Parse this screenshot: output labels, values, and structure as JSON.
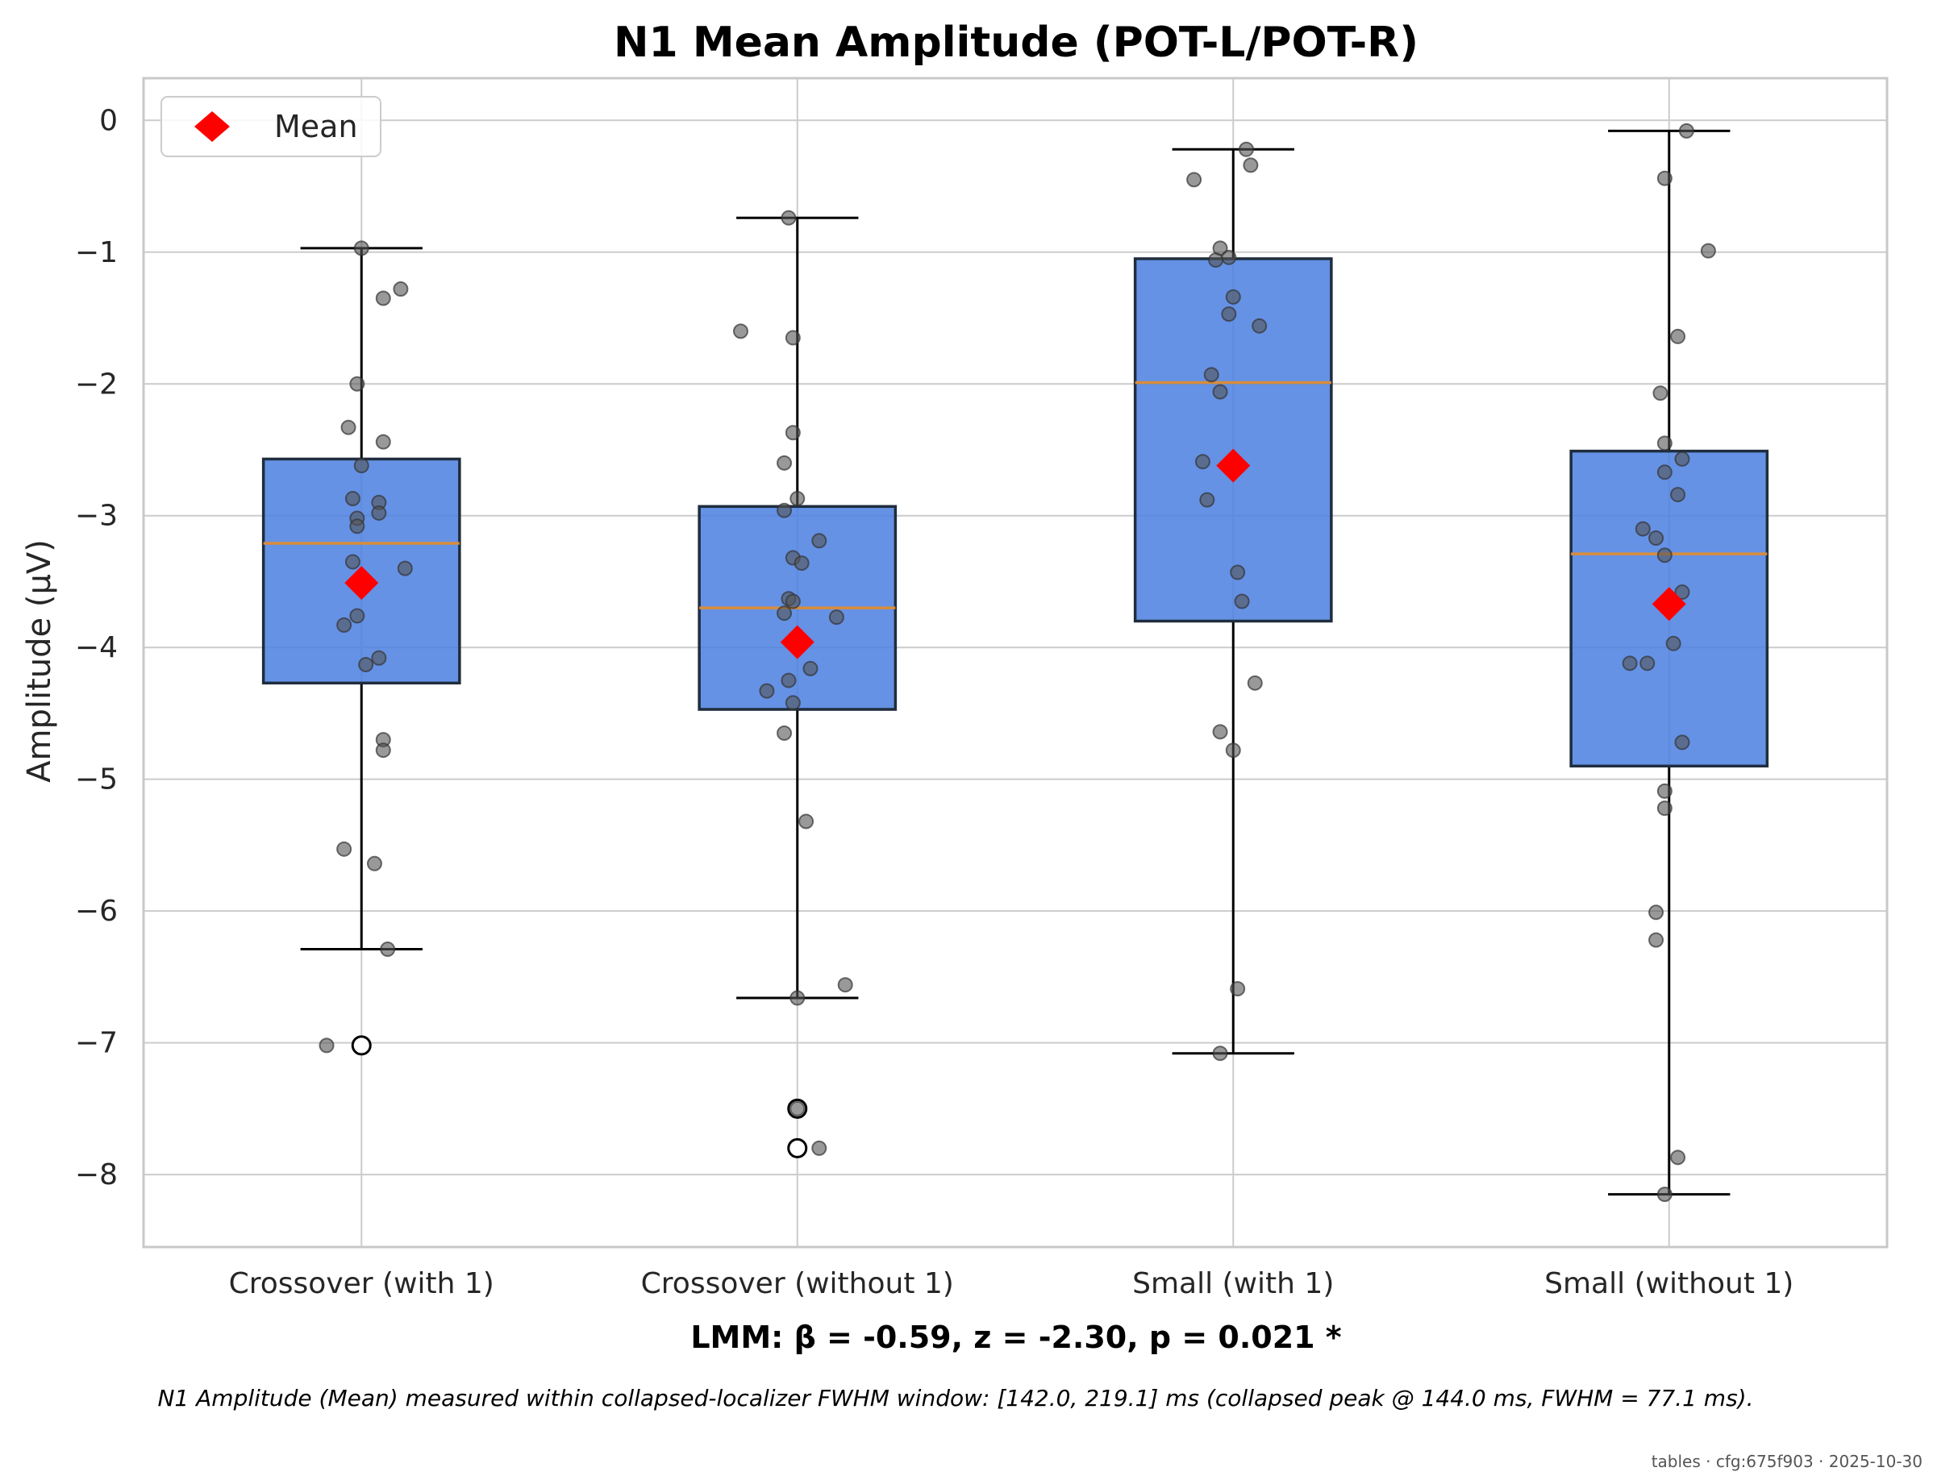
{
  "colors": {
    "box_fill": "#4a7fe0",
    "box_edge": "#1f2d3d",
    "median": "#d98c3a",
    "mean_marker": "#ff0000",
    "points": "#555555",
    "grid": "#cccccc",
    "frame": "#c8c8c8"
  },
  "legend": {
    "mean_label": "Mean",
    "position": "top-left"
  },
  "stat_text": "LMM: β = -0.59, z = -2.30, p = 0.021 *",
  "caption": "N1 Amplitude (Mean) measured within collapsed-localizer FWHM window: [142.0, 219.1] ms (collapsed peak @ 144.0 ms, FWHM = 77.1 ms).",
  "stamp": "tables · cfg:675f903 · 2025-10-30",
  "chart_data": {
    "type": "box",
    "title": "N1 Mean Amplitude (POT-L/POT-R)",
    "xlabel": "",
    "ylabel": "Amplitude (μV)",
    "ylim": [
      -8.55,
      0.32
    ],
    "yticks": [
      0,
      -1,
      -2,
      -3,
      -4,
      -5,
      -6,
      -7,
      -8
    ],
    "ytick_labels": [
      "0",
      "−1",
      "−2",
      "−3",
      "−4",
      "−5",
      "−6",
      "−7",
      "−8"
    ],
    "grid": true,
    "categories": [
      "Crossover (with 1)",
      "Crossover (without 1)",
      "Small (with 1)",
      "Small (without 1)"
    ],
    "groups": [
      {
        "q1": -4.27,
        "median": -3.21,
        "q3": -2.57,
        "whisker_low": -6.29,
        "whisker_high": -0.97,
        "mean": -3.51,
        "outliers": [
          -7.02
        ],
        "points": [
          {
            "jitter": 0.0,
            "y": -0.97
          },
          {
            "jitter": 0.09,
            "y": -1.28
          },
          {
            "jitter": 0.05,
            "y": -1.35
          },
          {
            "jitter": -0.01,
            "y": -2.0
          },
          {
            "jitter": -0.03,
            "y": -2.33
          },
          {
            "jitter": 0.05,
            "y": -2.44
          },
          {
            "jitter": 0.0,
            "y": -2.62
          },
          {
            "jitter": -0.02,
            "y": -2.87
          },
          {
            "jitter": 0.04,
            "y": -2.9
          },
          {
            "jitter": 0.04,
            "y": -2.98
          },
          {
            "jitter": -0.01,
            "y": -3.02
          },
          {
            "jitter": -0.01,
            "y": -3.08
          },
          {
            "jitter": -0.02,
            "y": -3.35
          },
          {
            "jitter": 0.1,
            "y": -3.4
          },
          {
            "jitter": -0.01,
            "y": -3.76
          },
          {
            "jitter": -0.04,
            "y": -3.83
          },
          {
            "jitter": 0.04,
            "y": -4.08
          },
          {
            "jitter": 0.01,
            "y": -4.13
          },
          {
            "jitter": 0.05,
            "y": -4.7
          },
          {
            "jitter": 0.05,
            "y": -4.78
          },
          {
            "jitter": -0.04,
            "y": -5.53
          },
          {
            "jitter": 0.03,
            "y": -5.64
          },
          {
            "jitter": 0.06,
            "y": -6.29
          },
          {
            "jitter": -0.08,
            "y": -7.02
          }
        ]
      },
      {
        "q1": -4.47,
        "median": -3.7,
        "q3": -2.93,
        "whisker_low": -6.66,
        "whisker_high": -0.74,
        "mean": -3.96,
        "outliers": [
          -7.5,
          -7.8
        ],
        "points": [
          {
            "jitter": -0.02,
            "y": -0.74
          },
          {
            "jitter": -0.13,
            "y": -1.6
          },
          {
            "jitter": -0.01,
            "y": -1.65
          },
          {
            "jitter": -0.01,
            "y": -2.37
          },
          {
            "jitter": -0.03,
            "y": -2.6
          },
          {
            "jitter": 0.0,
            "y": -2.87
          },
          {
            "jitter": -0.03,
            "y": -2.96
          },
          {
            "jitter": 0.05,
            "y": -3.19
          },
          {
            "jitter": -0.01,
            "y": -3.32
          },
          {
            "jitter": 0.01,
            "y": -3.36
          },
          {
            "jitter": -0.02,
            "y": -3.63
          },
          {
            "jitter": -0.01,
            "y": -3.65
          },
          {
            "jitter": -0.03,
            "y": -3.74
          },
          {
            "jitter": 0.09,
            "y": -3.77
          },
          {
            "jitter": 0.03,
            "y": -4.16
          },
          {
            "jitter": -0.02,
            "y": -4.25
          },
          {
            "jitter": -0.07,
            "y": -4.33
          },
          {
            "jitter": -0.01,
            "y": -4.42
          },
          {
            "jitter": -0.03,
            "y": -4.65
          },
          {
            "jitter": 0.02,
            "y": -5.32
          },
          {
            "jitter": 0.11,
            "y": -6.56
          },
          {
            "jitter": 0.0,
            "y": -6.66
          },
          {
            "jitter": 0.0,
            "y": -7.5
          },
          {
            "jitter": 0.05,
            "y": -7.8
          }
        ]
      },
      {
        "q1": -3.8,
        "median": -1.99,
        "q3": -1.05,
        "whisker_low": -7.08,
        "whisker_high": -0.22,
        "mean": -2.62,
        "outliers": [],
        "points": [
          {
            "jitter": 0.03,
            "y": -0.22
          },
          {
            "jitter": 0.04,
            "y": -0.34
          },
          {
            "jitter": -0.09,
            "y": -0.45
          },
          {
            "jitter": -0.03,
            "y": -0.97
          },
          {
            "jitter": -0.01,
            "y": -1.04
          },
          {
            "jitter": -0.04,
            "y": -1.06
          },
          {
            "jitter": 0.0,
            "y": -1.34
          },
          {
            "jitter": -0.01,
            "y": -1.47
          },
          {
            "jitter": 0.06,
            "y": -1.56
          },
          {
            "jitter": -0.05,
            "y": -1.93
          },
          {
            "jitter": -0.03,
            "y": -2.06
          },
          {
            "jitter": -0.07,
            "y": -2.59
          },
          {
            "jitter": -0.06,
            "y": -2.88
          },
          {
            "jitter": 0.01,
            "y": -3.43
          },
          {
            "jitter": 0.02,
            "y": -3.65
          },
          {
            "jitter": 0.05,
            "y": -4.27
          },
          {
            "jitter": -0.03,
            "y": -4.64
          },
          {
            "jitter": 0.0,
            "y": -4.78
          },
          {
            "jitter": 0.01,
            "y": -6.59
          },
          {
            "jitter": -0.03,
            "y": -7.08
          }
        ]
      },
      {
        "q1": -4.9,
        "median": -3.29,
        "q3": -2.51,
        "whisker_low": -8.15,
        "whisker_high": -0.08,
        "mean": -3.67,
        "outliers": [],
        "points": [
          {
            "jitter": 0.04,
            "y": -0.08
          },
          {
            "jitter": -0.01,
            "y": -0.44
          },
          {
            "jitter": 0.09,
            "y": -0.99
          },
          {
            "jitter": 0.02,
            "y": -1.64
          },
          {
            "jitter": -0.02,
            "y": -2.07
          },
          {
            "jitter": -0.01,
            "y": -2.45
          },
          {
            "jitter": 0.03,
            "y": -2.57
          },
          {
            "jitter": -0.01,
            "y": -2.67
          },
          {
            "jitter": 0.02,
            "y": -2.84
          },
          {
            "jitter": -0.06,
            "y": -3.1
          },
          {
            "jitter": -0.03,
            "y": -3.17
          },
          {
            "jitter": -0.01,
            "y": -3.3
          },
          {
            "jitter": 0.03,
            "y": -3.58
          },
          {
            "jitter": 0.01,
            "y": -3.97
          },
          {
            "jitter": -0.09,
            "y": -4.12
          },
          {
            "jitter": -0.05,
            "y": -4.12
          },
          {
            "jitter": 0.03,
            "y": -4.72
          },
          {
            "jitter": -0.01,
            "y": -5.09
          },
          {
            "jitter": -0.01,
            "y": -5.22
          },
          {
            "jitter": -0.03,
            "y": -6.01
          },
          {
            "jitter": -0.03,
            "y": -6.22
          },
          {
            "jitter": 0.02,
            "y": -7.87
          },
          {
            "jitter": -0.01,
            "y": -8.15
          }
        ]
      }
    ]
  }
}
